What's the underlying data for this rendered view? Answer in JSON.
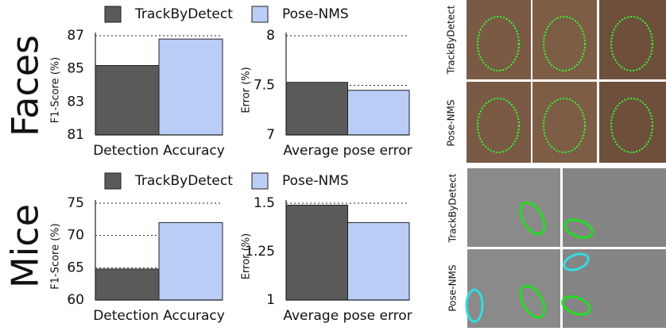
{
  "chart_data": [
    {
      "type": "bar",
      "categories": [
        "Detection Accuracy"
      ],
      "ylabel": "F1-Score (%)",
      "series": [
        {
          "name": "TrackByDetect",
          "color": "#5a5a5a",
          "values": [
            85.2
          ]
        },
        {
          "name": "Pose-NMS",
          "color": "#b9cdf7",
          "values": [
            86.8
          ]
        }
      ],
      "ylim": [
        81,
        87
      ],
      "yticks": [
        81,
        83,
        85,
        87
      ],
      "grid": true
    },
    {
      "type": "bar",
      "categories": [
        "Average pose error"
      ],
      "ylabel": "Error (%)",
      "series": [
        {
          "color": "#5a5a5a",
          "values": [
            7.53
          ]
        },
        {
          "color": "#b9cdf7",
          "values": [
            7.45
          ]
        }
      ],
      "ylim": [
        7,
        8
      ],
      "yticks": [
        7,
        7.5,
        8
      ],
      "grid": true
    },
    {
      "type": "bar",
      "categories": [
        "Detection Accuracy"
      ],
      "ylabel": "F1-Score (%)",
      "series": [
        {
          "name": "TrackByDetect",
          "color": "#5a5a5a",
          "values": [
            64.8
          ]
        },
        {
          "name": "Pose-NMS",
          "color": "#b9cdf7",
          "values": [
            72
          ]
        }
      ],
      "ylim": [
        60,
        75
      ],
      "yticks": [
        60,
        65,
        70,
        75
      ],
      "grid": true
    },
    {
      "type": "bar",
      "categories": [
        "Average pose error"
      ],
      "ylabel": "Error (%)",
      "series": [
        {
          "color": "#5a5a5a",
          "values": [
            1.49
          ]
        },
        {
          "color": "#b9cdf7",
          "values": [
            1.4
          ]
        }
      ],
      "ylim": [
        1,
        1.5
      ],
      "yticks": [
        1,
        1.25,
        1.5
      ],
      "grid": true
    }
  ],
  "row_labels": [
    "Faces",
    "Mice"
  ],
  "image_panels": [
    {
      "row_labels": [
        "TrackByDetect",
        "Pose-NMS"
      ]
    },
    {
      "row_labels": [
        "TrackByDetect",
        "Pose-NMS"
      ]
    }
  ]
}
